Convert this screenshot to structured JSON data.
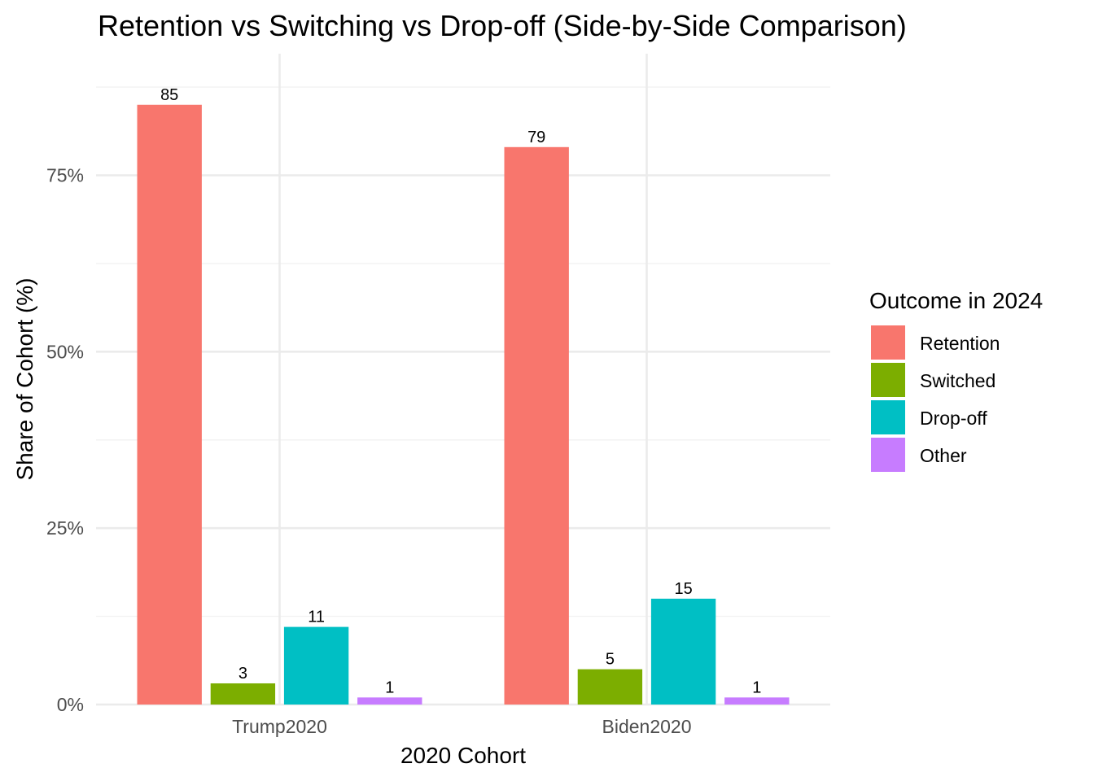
{
  "chart_data": {
    "type": "bar",
    "title": "Retention vs Switching vs Drop-off (Side-by-Side Comparison)",
    "xlabel": "2020 Cohort",
    "ylabel": "Share of Cohort (%)",
    "categories": [
      "Trump2020",
      "Biden2020"
    ],
    "series": [
      {
        "name": "Retention",
        "values": [
          85,
          79
        ],
        "color": "#F8766D"
      },
      {
        "name": "Switched",
        "values": [
          3,
          5
        ],
        "color": "#7CAE00"
      },
      {
        "name": "Drop-off",
        "values": [
          11,
          15
        ],
        "color": "#00BFC4"
      },
      {
        "name": "Other",
        "values": [
          1,
          1
        ],
        "color": "#C77CFF"
      }
    ],
    "ylim": [
      0,
      92
    ],
    "yticks": [
      0,
      25,
      50,
      75
    ],
    "ytick_labels": [
      "0%",
      "25%",
      "50%",
      "75%"
    ],
    "grid": true,
    "legend_title": "Outcome in 2024",
    "legend_position": "right"
  }
}
